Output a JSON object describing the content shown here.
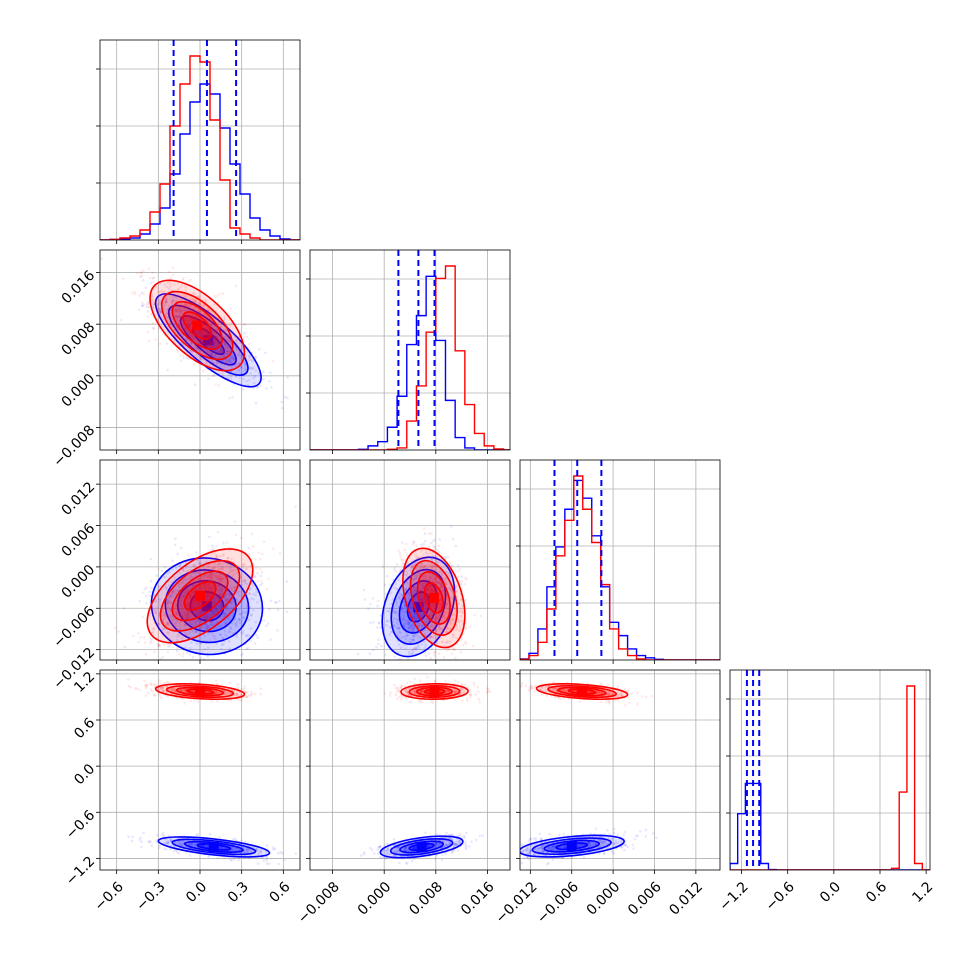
{
  "chart_data": {
    "type": "corner",
    "title": "",
    "series": [
      {
        "name": "",
        "color": "#ff0000"
      },
      {
        "name": "",
        "color": "#0000ff"
      }
    ],
    "grid": true,
    "parameters": [
      {
        "range": [
          -0.72,
          0.72
        ],
        "ticks": [
          "-0.6",
          "-0.3",
          "0.0",
          "0.3",
          "0.6"
        ],
        "tick_values": [
          -0.6,
          -0.3,
          0.0,
          0.3,
          0.6
        ]
      },
      {
        "range": [
          -0.0115,
          0.0195
        ],
        "ticks": [
          "-0.008",
          "0.000",
          "0.008",
          "0.016"
        ],
        "tick_values": [
          -0.008,
          0.0,
          0.008,
          0.016
        ]
      },
      {
        "range": [
          -0.0135,
          0.0155
        ],
        "ticks": [
          "-0.012",
          "-0.006",
          "0.000",
          "0.006",
          "0.012"
        ],
        "tick_values": [
          -0.012,
          -0.006,
          0.0,
          0.006,
          0.012
        ]
      },
      {
        "range": [
          -1.35,
          1.25
        ],
        "ticks": [
          "-1.2",
          "-0.6",
          "0.0",
          "0.6",
          "1.2"
        ],
        "tick_values": [
          -1.2,
          -0.6,
          0.0,
          0.6,
          1.2
        ]
      }
    ],
    "quantile_lines": {
      "color": "#0000ff",
      "param_0": [
        -0.19,
        0.05,
        0.26
      ],
      "param_1": [
        0.0022,
        0.0053,
        0.0078
      ],
      "param_2": [
        -0.0085,
        -0.0052,
        -0.0017
      ],
      "param_3": [
        -1.13,
        -1.05,
        -0.97
      ]
    },
    "histograms": [
      {
        "param": 0,
        "bin_edges": [
          -0.72,
          -0.648,
          -0.576,
          -0.504,
          -0.432,
          -0.36,
          -0.288,
          -0.216,
          -0.144,
          -0.072,
          0,
          0.072,
          0.144,
          0.216,
          0.288,
          0.36,
          0.432,
          0.504,
          0.576,
          0.648,
          0.72
        ],
        "red": [
          0,
          0.3,
          1,
          2,
          5,
          14,
          28,
          57,
          78,
          92,
          89,
          60,
          30,
          6,
          3,
          1,
          0,
          0,
          0,
          0
        ],
        "blue": [
          0,
          0.3,
          0.5,
          1,
          3,
          8,
          16,
          33,
          53,
          69,
          78,
          73,
          56,
          38,
          23,
          11,
          5,
          2,
          0.5,
          0
        ]
      },
      {
        "param": 1,
        "bin_edges": [
          -0.0115,
          -0.01,
          -0.0085,
          -0.007,
          -0.0055,
          -0.004,
          -0.0025,
          -0.001,
          0.0005,
          0.002,
          0.0035,
          0.005,
          0.0065,
          0.008,
          0.0095,
          0.011,
          0.0125,
          0.014,
          0.0155,
          0.017,
          0.0185,
          0.0195
        ],
        "red": [
          0,
          0,
          0,
          0,
          0,
          0,
          0,
          0,
          0.3,
          1,
          14,
          31,
          57,
          83,
          89,
          48,
          22,
          8,
          2,
          0.5,
          0
        ],
        "blue": [
          0,
          0,
          0,
          0,
          0,
          0.3,
          2,
          4,
          11,
          26,
          51,
          65,
          84,
          53,
          24,
          6,
          1,
          0,
          0,
          0,
          0
        ]
      },
      {
        "param": 2,
        "bin_edges": [
          -0.0135,
          -0.0122,
          -0.0109,
          -0.0096,
          -0.0083,
          -0.007,
          -0.0057,
          -0.0044,
          -0.0031,
          -0.0018,
          -0.0005,
          0.0008,
          0.0021,
          0.0034,
          0.0047,
          0.006,
          0.0073,
          0.0086,
          0.0099,
          0.0112,
          0.0125,
          0.0155
        ],
        "red": [
          0.3,
          2,
          8,
          23,
          47,
          63,
          83,
          68,
          53,
          34,
          14,
          5,
          2,
          0.5,
          0,
          0,
          0,
          0,
          0,
          0,
          0
        ],
        "blue": [
          0.5,
          3,
          14,
          33,
          51,
          68,
          81,
          73,
          56,
          33,
          17,
          11,
          5,
          2,
          1,
          0.3,
          0,
          0,
          0,
          0,
          0
        ]
      },
      {
        "param": 3,
        "bin_edges": [
          -1.35,
          -1.25,
          -1.15,
          -1.05,
          -0.95,
          -0.85,
          -0.75,
          -0.65,
          -0.55,
          -0.45,
          -0.35,
          -0.25,
          -0.15,
          -0.05,
          0.05,
          0.15,
          0.25,
          0.35,
          0.45,
          0.55,
          0.65,
          0.75,
          0.85,
          0.95,
          1.05,
          1.15,
          1.25
        ],
        "red": [
          0,
          0,
          0,
          0,
          0,
          0,
          0,
          0,
          0,
          0,
          0,
          0,
          0,
          0,
          0,
          0,
          0,
          0,
          0,
          0,
          0,
          0.8,
          36,
          85,
          3,
          0
        ],
        "blue": [
          3,
          26,
          40,
          40,
          3,
          0.2,
          0,
          0,
          0,
          0,
          0,
          0,
          0,
          0,
          0,
          0,
          0,
          0,
          0,
          0,
          0,
          0,
          0,
          0,
          0,
          0
        ]
      }
    ],
    "pair_densities": [
      {
        "x": 0,
        "y": 1,
        "red": {
          "mean": [
            -0.02,
            0.0078
          ],
          "sd": [
            0.17,
            0.0035
          ],
          "corr": -0.6
        },
        "blue": {
          "mean": [
            0.06,
            0.0055
          ],
          "sd": [
            0.19,
            0.0036
          ],
          "corr": -0.8
        }
      },
      {
        "x": 0,
        "y": 2,
        "red": {
          "mean": [
            0.0,
            -0.0042
          ],
          "sd": [
            0.19,
            0.0034
          ],
          "corr": 0.55
        },
        "blue": {
          "mean": [
            0.05,
            -0.0057
          ],
          "sd": [
            0.2,
            0.0035
          ],
          "corr": -0.05
        }
      },
      {
        "x": 1,
        "y": 2,
        "red": {
          "mean": [
            0.0077,
            -0.0045
          ],
          "sd": [
            0.0024,
            0.0036
          ],
          "corr": -0.35
        },
        "blue": {
          "mean": [
            0.0053,
            -0.0058
          ],
          "sd": [
            0.0028,
            0.0036
          ],
          "corr": 0.3
        }
      },
      {
        "x": 0,
        "y": 3,
        "red": {
          "mean": [
            0.0,
            0.97
          ],
          "sd": [
            0.16,
            0.05
          ],
          "corr": -0.35
        },
        "blue": {
          "mean": [
            0.1,
            -1.05
          ],
          "sd": [
            0.2,
            0.065
          ],
          "corr": -0.6
        }
      },
      {
        "x": 1,
        "y": 3,
        "red": {
          "mean": [
            0.0078,
            0.97
          ],
          "sd": [
            0.0026,
            0.05
          ],
          "corr": 0.05
        },
        "blue": {
          "mean": [
            0.0058,
            -1.05
          ],
          "sd": [
            0.0032,
            0.07
          ],
          "corr": 0.5
        }
      },
      {
        "x": 2,
        "y": 3,
        "red": {
          "mean": [
            -0.0045,
            0.97
          ],
          "sd": [
            0.0033,
            0.05
          ],
          "corr": -0.4
        },
        "blue": {
          "mean": [
            -0.006,
            -1.04
          ],
          "sd": [
            0.0038,
            0.07
          ],
          "corr": 0.45
        }
      }
    ]
  }
}
